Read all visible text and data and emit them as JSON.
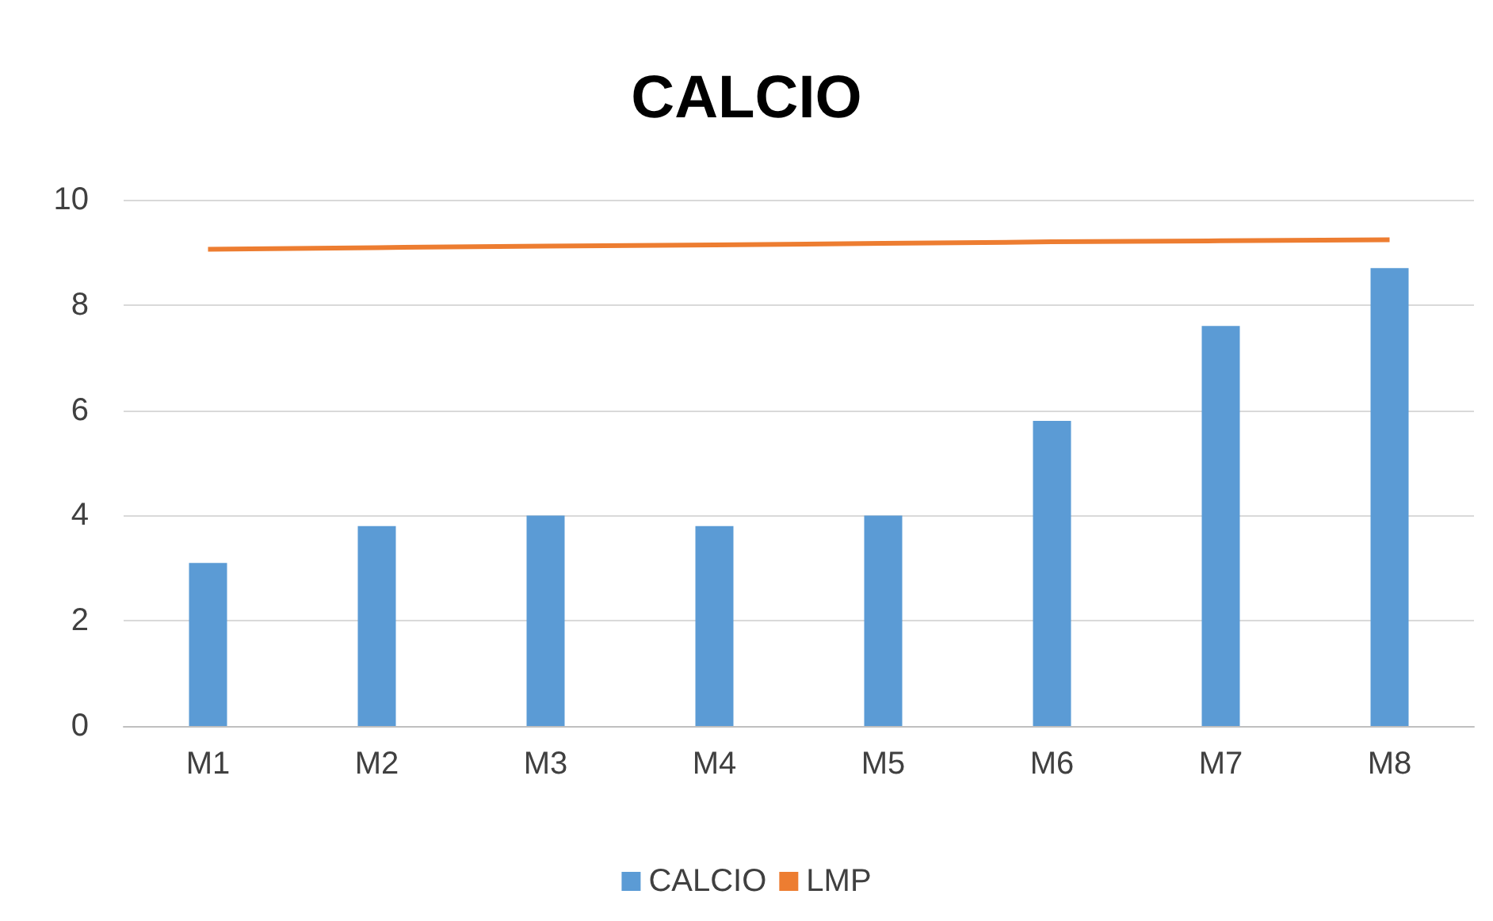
{
  "chart_data": {
    "type": "bar",
    "title": "CALCIO",
    "categories": [
      "M1",
      "M2",
      "M3",
      "M4",
      "M5",
      "M6",
      "M7",
      "M8"
    ],
    "series": [
      {
        "name": "CALCIO",
        "color": "#5b9bd5",
        "values": [
          3.1,
          3.8,
          4.0,
          3.8,
          4.0,
          5.8,
          7.6,
          8.7
        ]
      },
      {
        "name": "LMP",
        "type": "line",
        "color": "#ed7d31",
        "values": [
          9.06,
          9.09,
          9.12,
          9.14,
          9.17,
          9.2,
          9.22,
          9.24
        ]
      }
    ],
    "ylim": [
      0,
      10
    ],
    "yticks": [
      0,
      2,
      4,
      6,
      8,
      10
    ],
    "grid": "y",
    "legend": "bottom",
    "marker": "none"
  }
}
